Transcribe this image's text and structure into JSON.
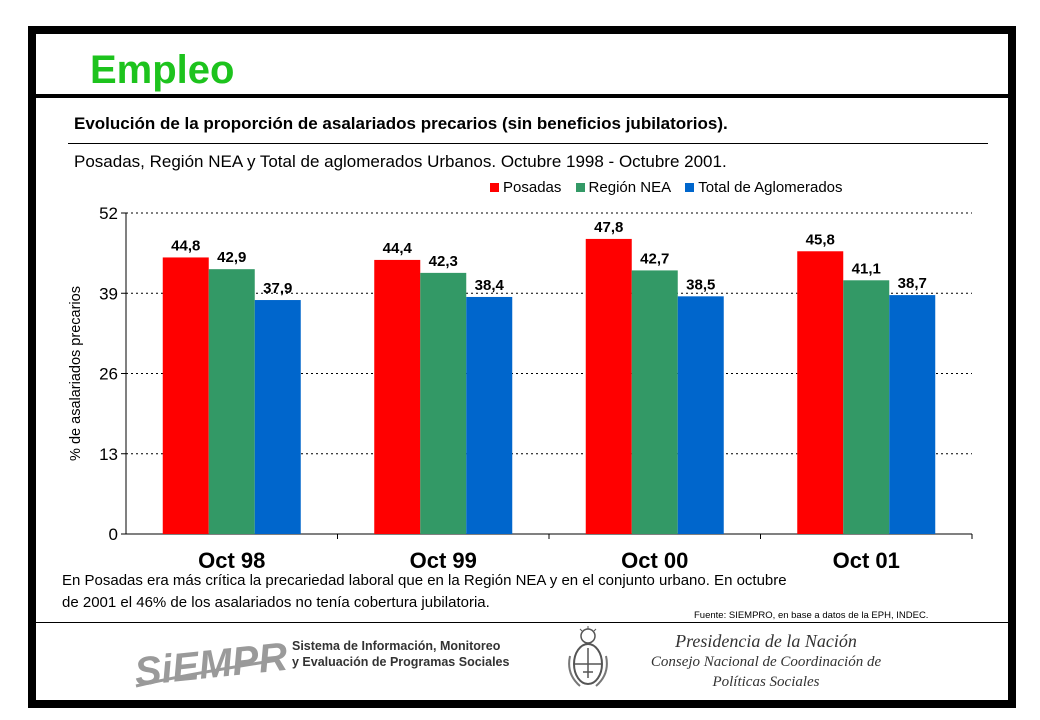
{
  "page": {
    "title": "Empleo",
    "subtitle": "Evolución de la proporción de asalariados precarios (sin beneficios jubilatorios).",
    "subtitle2": "Posadas, Región NEA y Total de aglomerados Urbanos. Octubre 1998 - Octubre 2001.",
    "note": "En Posadas era más crítica la precariedad laboral que en la Región NEA y en el conjunto urbano. En octubre de 2001 el 46% de los asalariados no tenía cobertura jubilatoria.",
    "source": "Fuente: SIEMPRO, en base a datos de la EPH, INDEC."
  },
  "footer": {
    "siempro_logo": "SiEMPRO",
    "sistema_line1": "Sistema de Información, Monitoreo",
    "sistema_line2": "y Evaluación de Programas Sociales",
    "pres_line1": "Presidencia de la Nación",
    "pres_line2": "Consejo Nacional de Coordinación de",
    "pres_line3": "Políticas Sociales"
  },
  "chart_data": {
    "type": "bar",
    "categories": [
      "Oct 98",
      "Oct 99",
      "Oct 00",
      "Oct 01"
    ],
    "series": [
      {
        "name": "Posadas",
        "color": "#ff0000",
        "values": [
          44.8,
          44.4,
          47.8,
          45.8
        ],
        "labels": [
          "44,8",
          "44,4",
          "47,8",
          "45,8"
        ]
      },
      {
        "name": "Región NEA",
        "color": "#339966",
        "values": [
          42.9,
          42.3,
          42.7,
          41.1
        ],
        "labels": [
          "42,9",
          "42,3",
          "42,7",
          "41,1"
        ]
      },
      {
        "name": "Total de Aglomerados",
        "color": "#0066cc",
        "values": [
          37.9,
          38.4,
          38.5,
          38.7
        ],
        "labels": [
          "37,9",
          "38,4",
          "38,5",
          "38,7"
        ]
      }
    ],
    "ylabel": "% de asalariados precarios",
    "ylim": [
      0,
      52
    ],
    "yticks": [
      0,
      13,
      26,
      39,
      52
    ],
    "grid": true,
    "legend": "top-right"
  }
}
